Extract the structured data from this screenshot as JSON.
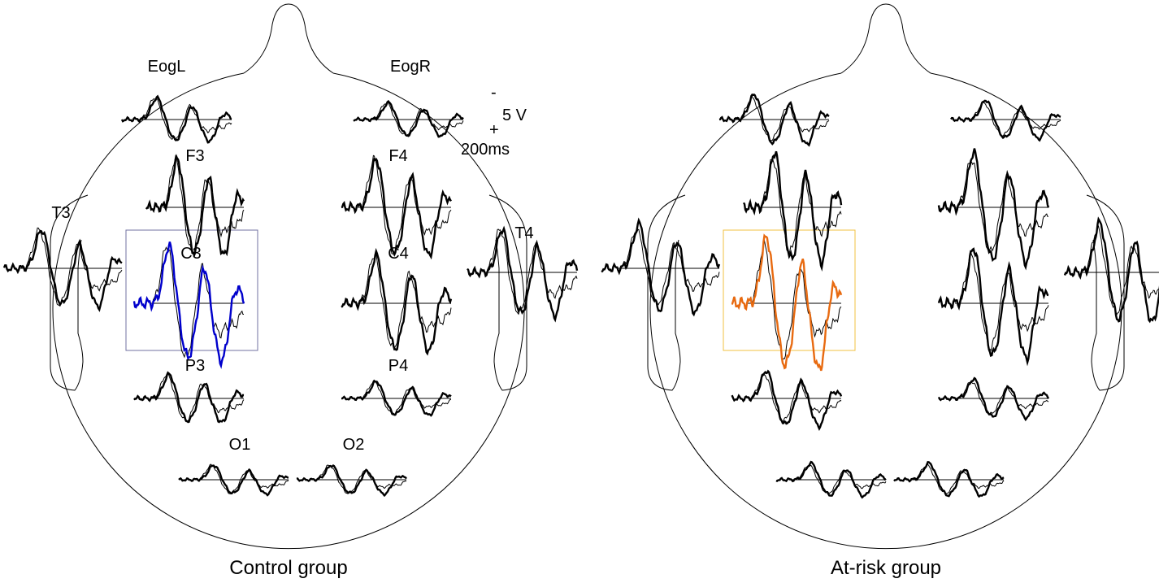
{
  "left_panel": {
    "title": "Control group",
    "electrodes": [
      {
        "label": "EogL"
      },
      {
        "label": "EogR"
      },
      {
        "label": "F3"
      },
      {
        "label": "F4"
      },
      {
        "label": "T3"
      },
      {
        "label": "T4"
      },
      {
        "label": "C3"
      },
      {
        "label": "C4"
      },
      {
        "label": "P3"
      },
      {
        "label": "P4"
      },
      {
        "label": "O1"
      },
      {
        "label": "O2"
      }
    ],
    "scale": {
      "minus": "-",
      "amplitude": "5 V",
      "plus": "+",
      "time": "200ms"
    }
  },
  "right_panel": {
    "title": "At-risk group"
  }
}
